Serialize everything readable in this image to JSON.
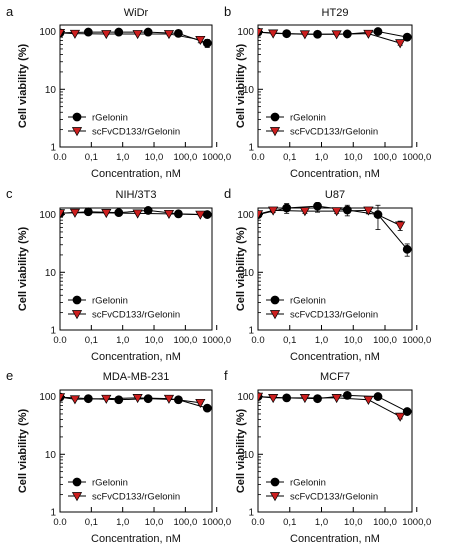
{
  "chart_data": [
    {
      "panel_letter": "a",
      "title": "WiDr",
      "type": "line",
      "xlabel": "Concentration, nM",
      "ylabel": "Cell viability (%)",
      "x_ticks": [
        "0.0",
        "0,1",
        "1,0",
        "10,0",
        "100,0",
        "1000,0"
      ],
      "y_ticks": [
        "1",
        "10",
        "100"
      ],
      "y_scale": "log",
      "x_scale": "log",
      "ylim": [
        1,
        130
      ],
      "legend_position": "bottom-left",
      "series": [
        {
          "name": "rGelonin",
          "marker": "circle",
          "color": "#000000",
          "x": [
            0.01,
            0.08,
            0.75,
            6.5,
            60,
            500
          ],
          "y": [
            95,
            98,
            98,
            98,
            93,
            63
          ],
          "err": [
            4,
            3,
            3,
            3,
            3,
            10
          ]
        },
        {
          "name": "scFvCD133/rGelonin",
          "marker": "triangle-down",
          "color": "#cc1f1f",
          "x": [
            0.01,
            0.03,
            0.3,
            3,
            30,
            300
          ],
          "y": [
            95,
            92,
            91,
            91,
            91,
            72
          ],
          "err": [
            3,
            3,
            3,
            3,
            4,
            8
          ]
        }
      ]
    },
    {
      "panel_letter": "b",
      "title": "HT29",
      "type": "line",
      "xlabel": "Concentration, nM",
      "ylabel": "Cell viability (%)",
      "x_ticks": [
        "0.0",
        "0,1",
        "1,0",
        "10,0",
        "100,0",
        "1000,0"
      ],
      "y_ticks": [
        "1",
        "10",
        "100"
      ],
      "y_scale": "log",
      "x_scale": "log",
      "ylim": [
        1,
        130
      ],
      "legend_position": "bottom-left",
      "series": [
        {
          "name": "rGelonin",
          "marker": "circle",
          "color": "#000000",
          "x": [
            0.01,
            0.08,
            0.75,
            6.5,
            60,
            500
          ],
          "y": [
            98,
            92,
            90,
            91,
            100,
            80
          ],
          "err": [
            4,
            3,
            3,
            3,
            4,
            10
          ]
        },
        {
          "name": "scFvCD133/rGelonin",
          "marker": "triangle-down",
          "color": "#cc1f1f",
          "x": [
            0.01,
            0.03,
            0.3,
            3,
            30,
            300
          ],
          "y": [
            98,
            93,
            90,
            90,
            92,
            63
          ],
          "err": [
            3,
            3,
            3,
            3,
            3,
            5
          ]
        }
      ]
    },
    {
      "panel_letter": "c",
      "title": "NIH/3T3",
      "type": "line",
      "xlabel": "Concentration, nM",
      "ylabel": "Cell viability (%)",
      "x_ticks": [
        "0.0",
        "0,1",
        "1,0",
        "10,0",
        "100,0",
        "1000,0"
      ],
      "y_ticks": [
        "1",
        "10",
        "100"
      ],
      "y_scale": "log",
      "x_scale": "log",
      "ylim": [
        1,
        130
      ],
      "legend_position": "bottom-left",
      "series": [
        {
          "name": "rGelonin",
          "marker": "circle",
          "color": "#000000",
          "x": [
            0.01,
            0.08,
            0.75,
            6.5,
            60,
            500
          ],
          "y": [
            105,
            112,
            108,
            118,
            103,
            100
          ],
          "err": [
            4,
            4,
            4,
            6,
            4,
            4
          ]
        },
        {
          "name": "scFvCD133/rGelonin",
          "marker": "triangle-down",
          "color": "#cc1f1f",
          "x": [
            0.01,
            0.03,
            0.3,
            3,
            30,
            300
          ],
          "y": [
            106,
            108,
            107,
            105,
            103,
            100
          ],
          "err": [
            3,
            3,
            3,
            3,
            3,
            3
          ]
        }
      ]
    },
    {
      "panel_letter": "d",
      "title": "U87",
      "type": "line",
      "xlabel": "Concentration, nM",
      "ylabel": "Cell viability (%)",
      "x_ticks": [
        "0.0",
        "0,1",
        "1,0",
        "10,0",
        "100,0",
        "1000,0"
      ],
      "y_ticks": [
        "1",
        "10",
        "100"
      ],
      "y_scale": "log",
      "x_scale": "log",
      "ylim": [
        1,
        130
      ],
      "legend_position": "bottom-left",
      "series": [
        {
          "name": "rGelonin",
          "marker": "circle",
          "color": "#000000",
          "x": [
            0.01,
            0.08,
            0.75,
            6.5,
            60,
            500
          ],
          "y": [
            100,
            130,
            140,
            120,
            100,
            25
          ],
          "err": [
            5,
            25,
            30,
            25,
            45,
            6
          ]
        },
        {
          "name": "scFvCD133/rGelonin",
          "marker": "triangle-down",
          "color": "#cc1f1f",
          "x": [
            0.01,
            0.03,
            0.3,
            3,
            30,
            300
          ],
          "y": [
            102,
            118,
            115,
            115,
            118,
            65
          ],
          "err": [
            5,
            10,
            10,
            10,
            15,
            12
          ]
        }
      ]
    },
    {
      "panel_letter": "e",
      "title": "MDA-MB-231",
      "type": "line",
      "xlabel": "Concentration, nM",
      "ylabel": "Cell viability (%)",
      "x_ticks": [
        "0.0",
        "0,1",
        "1,0",
        "10,0",
        "100,0",
        "1000,0"
      ],
      "y_ticks": [
        "1",
        "10",
        "100"
      ],
      "y_scale": "log",
      "x_scale": "log",
      "ylim": [
        1,
        130
      ],
      "legend_position": "bottom-left",
      "series": [
        {
          "name": "rGelonin",
          "marker": "circle",
          "color": "#000000",
          "x": [
            0.01,
            0.08,
            0.75,
            6.5,
            60,
            500
          ],
          "y": [
            98,
            92,
            88,
            92,
            88,
            63
          ],
          "err": [
            3,
            3,
            3,
            3,
            3,
            4
          ]
        },
        {
          "name": "scFvCD133/rGelonin",
          "marker": "triangle-down",
          "color": "#cc1f1f",
          "x": [
            0.01,
            0.03,
            0.3,
            3,
            30,
            300
          ],
          "y": [
            98,
            90,
            92,
            95,
            92,
            78
          ],
          "err": [
            3,
            3,
            3,
            4,
            3,
            4
          ]
        }
      ]
    },
    {
      "panel_letter": "f",
      "title": "MCF7",
      "type": "line",
      "xlabel": "Concentration, nM",
      "ylabel": "Cell viability (%)",
      "x_ticks": [
        "0.0",
        "0,1",
        "1,0",
        "10,0",
        "100,0",
        "1000,0"
      ],
      "y_ticks": [
        "1",
        "10",
        "100"
      ],
      "y_scale": "log",
      "x_scale": "log",
      "ylim": [
        1,
        130
      ],
      "legend_position": "bottom-left",
      "series": [
        {
          "name": "rGelonin",
          "marker": "circle",
          "color": "#000000",
          "x": [
            0.01,
            0.08,
            0.75,
            6.5,
            60,
            500
          ],
          "y": [
            100,
            95,
            92,
            105,
            100,
            55
          ],
          "err": [
            3,
            3,
            3,
            4,
            3,
            4
          ]
        },
        {
          "name": "scFvCD133/rGelonin",
          "marker": "triangle-down",
          "color": "#cc1f1f",
          "x": [
            0.01,
            0.03,
            0.3,
            3,
            30,
            300
          ],
          "y": [
            100,
            95,
            95,
            95,
            88,
            45
          ],
          "err": [
            3,
            3,
            3,
            3,
            3,
            4
          ]
        }
      ]
    }
  ]
}
